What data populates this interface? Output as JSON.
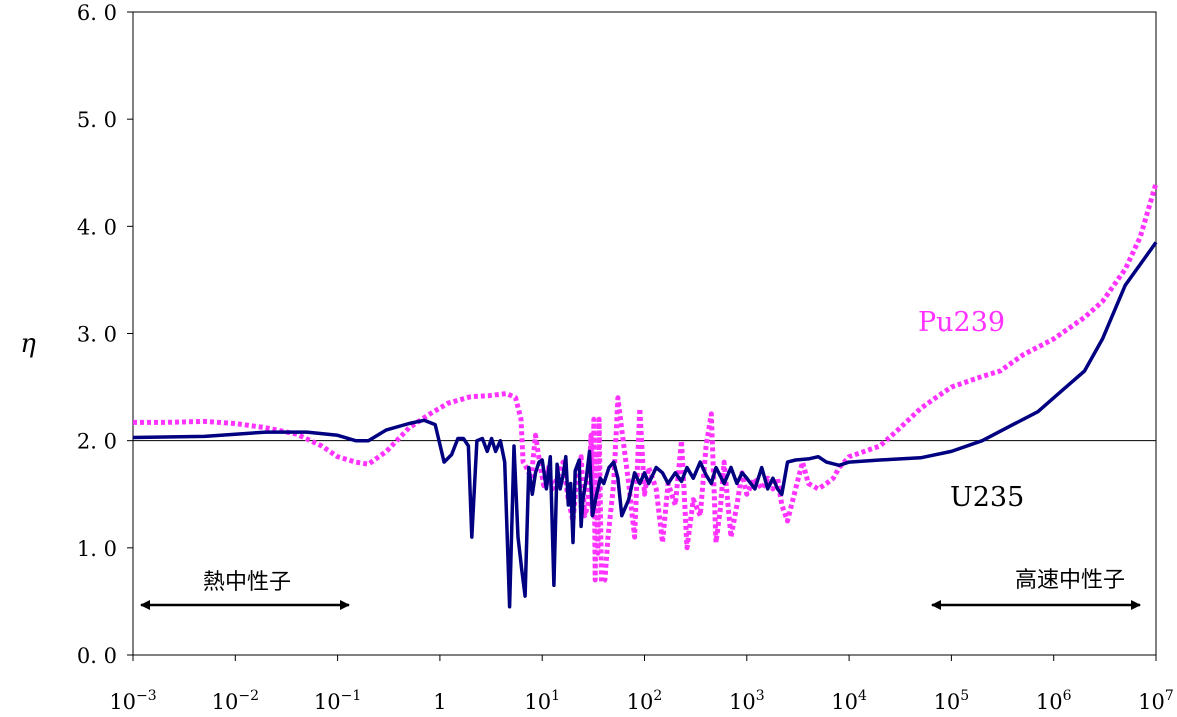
{
  "chart_data": {
    "type": "line",
    "title": "",
    "xlabel": "",
    "ylabel": "η",
    "x_scale": "log",
    "xlim": [
      0.001,
      10000000
    ],
    "ylim": [
      0,
      6
    ],
    "grid": false,
    "reference_line_y": 2.0,
    "x_ticks": [
      {
        "base": "10",
        "exp": "−3"
      },
      {
        "base": "10",
        "exp": "−2"
      },
      {
        "base": "10",
        "exp": "−1"
      },
      {
        "base": "1",
        "exp": ""
      },
      {
        "base": "10",
        "exp": "1"
      },
      {
        "base": "10",
        "exp": "2"
      },
      {
        "base": "10",
        "exp": "3"
      },
      {
        "base": "10",
        "exp": "4"
      },
      {
        "base": "10",
        "exp": "5"
      },
      {
        "base": "10",
        "exp": "6"
      },
      {
        "base": "10",
        "exp": "7"
      }
    ],
    "y_ticks": [
      "0. 0",
      "1. 0",
      "2. 0",
      "3. 0",
      "4. 0",
      "5. 0",
      "6. 0"
    ],
    "series": [
      {
        "name": "U235",
        "color": "#000080",
        "style": "solid",
        "points": [
          [
            0.001,
            2.03
          ],
          [
            0.005,
            2.04
          ],
          [
            0.01,
            2.06
          ],
          [
            0.02,
            2.08
          ],
          [
            0.05,
            2.08
          ],
          [
            0.1,
            2.05
          ],
          [
            0.15,
            2.0
          ],
          [
            0.2,
            2.0
          ],
          [
            0.3,
            2.1
          ],
          [
            0.5,
            2.16
          ],
          [
            0.7,
            2.19
          ],
          [
            0.9,
            2.15
          ],
          [
            1.1,
            1.8
          ],
          [
            1.3,
            1.87
          ],
          [
            1.5,
            2.02
          ],
          [
            1.7,
            2.02
          ],
          [
            1.9,
            1.95
          ],
          [
            2.05,
            1.1
          ],
          [
            2.3,
            2.0
          ],
          [
            2.6,
            2.02
          ],
          [
            2.9,
            1.9
          ],
          [
            3.2,
            2.02
          ],
          [
            3.5,
            1.9
          ],
          [
            3.9,
            2.0
          ],
          [
            4.3,
            1.8
          ],
          [
            4.8,
            0.45
          ],
          [
            5.3,
            1.95
          ],
          [
            5.8,
            1.1
          ],
          [
            6.3,
            0.8
          ],
          [
            6.8,
            0.55
          ],
          [
            7.4,
            1.75
          ],
          [
            8.0,
            1.5
          ],
          [
            8.6,
            1.7
          ],
          [
            9.3,
            1.8
          ],
          [
            10,
            1.82
          ],
          [
            11,
            1.55
          ],
          [
            12,
            1.85
          ],
          [
            13,
            0.65
          ],
          [
            14,
            1.78
          ],
          [
            15,
            1.55
          ],
          [
            16,
            1.68
          ],
          [
            17,
            1.85
          ],
          [
            18,
            1.4
          ],
          [
            19,
            1.6
          ],
          [
            20,
            1.05
          ],
          [
            21,
            1.72
          ],
          [
            23,
            1.82
          ],
          [
            24,
            1.2
          ],
          [
            25,
            1.45
          ],
          [
            27,
            1.65
          ],
          [
            29,
            1.9
          ],
          [
            31,
            1.3
          ],
          [
            34,
            1.5
          ],
          [
            37,
            1.65
          ],
          [
            40,
            1.6
          ],
          [
            45,
            1.75
          ],
          [
            50,
            1.8
          ],
          [
            55,
            1.65
          ],
          [
            60,
            1.3
          ],
          [
            70,
            1.45
          ],
          [
            80,
            1.7
          ],
          [
            90,
            1.6
          ],
          [
            100,
            1.7
          ],
          [
            110,
            1.6
          ],
          [
            130,
            1.75
          ],
          [
            150,
            1.7
          ],
          [
            170,
            1.6
          ],
          [
            200,
            1.7
          ],
          [
            230,
            1.62
          ],
          [
            260,
            1.75
          ],
          [
            300,
            1.65
          ],
          [
            350,
            1.8
          ],
          [
            400,
            1.68
          ],
          [
            450,
            1.6
          ],
          [
            500,
            1.75
          ],
          [
            600,
            1.6
          ],
          [
            700,
            1.75
          ],
          [
            800,
            1.6
          ],
          [
            900,
            1.7
          ],
          [
            1000,
            1.65
          ],
          [
            1200,
            1.55
          ],
          [
            1400,
            1.75
          ],
          [
            1600,
            1.55
          ],
          [
            1800,
            1.65
          ],
          [
            2000,
            1.55
          ],
          [
            2200,
            1.5
          ],
          [
            2500,
            1.8
          ],
          [
            3000,
            1.82
          ],
          [
            4000,
            1.83
          ],
          [
            5000,
            1.85
          ],
          [
            6000,
            1.8
          ],
          [
            8000,
            1.77
          ],
          [
            10000,
            1.8
          ],
          [
            20000,
            1.82
          ],
          [
            50000,
            1.84
          ],
          [
            100000,
            1.9
          ],
          [
            200000,
            2.0
          ],
          [
            400000,
            2.15
          ],
          [
            700000,
            2.27
          ],
          [
            1000000,
            2.4
          ],
          [
            2000000,
            2.65
          ],
          [
            3000000,
            2.95
          ],
          [
            5000000,
            3.45
          ],
          [
            10000000,
            3.85
          ]
        ]
      },
      {
        "name": "Pu239",
        "color": "#ff33ff",
        "style": "dotted",
        "points": [
          [
            0.001,
            2.17
          ],
          [
            0.002,
            2.17
          ],
          [
            0.005,
            2.18
          ],
          [
            0.01,
            2.16
          ],
          [
            0.02,
            2.12
          ],
          [
            0.04,
            2.06
          ],
          [
            0.07,
            1.95
          ],
          [
            0.1,
            1.85
          ],
          [
            0.15,
            1.8
          ],
          [
            0.2,
            1.78
          ],
          [
            0.3,
            1.9
          ],
          [
            0.5,
            2.12
          ],
          [
            0.8,
            2.25
          ],
          [
            1.2,
            2.35
          ],
          [
            2,
            2.41
          ],
          [
            3,
            2.42
          ],
          [
            4.5,
            2.44
          ],
          [
            5.5,
            2.4
          ],
          [
            6.2,
            2.2
          ],
          [
            6.5,
            1.8
          ],
          [
            7.0,
            1.75
          ],
          [
            7.8,
            1.65
          ],
          [
            8.6,
            2.05
          ],
          [
            9.5,
            1.78
          ],
          [
            10.5,
            1.55
          ],
          [
            11.5,
            1.75
          ],
          [
            12.5,
            1.55
          ],
          [
            14,
            1.65
          ],
          [
            16,
            1.8
          ],
          [
            18,
            1.45
          ],
          [
            20,
            1.25
          ],
          [
            22,
            1.7
          ],
          [
            24,
            1.85
          ],
          [
            26,
            1.3
          ],
          [
            28,
            1.4
          ],
          [
            30,
            2.05
          ],
          [
            31,
            1.3
          ],
          [
            32,
            2.2
          ],
          [
            33,
            0.7
          ],
          [
            34,
            1.9
          ],
          [
            35,
            0.95
          ],
          [
            36,
            2.2
          ],
          [
            38,
            0.68
          ],
          [
            41,
            0.7
          ],
          [
            44,
            1.1
          ],
          [
            50,
            1.6
          ],
          [
            55,
            2.4
          ],
          [
            60,
            2.1
          ],
          [
            70,
            1.6
          ],
          [
            80,
            1.1
          ],
          [
            90,
            2.3
          ],
          [
            100,
            1.5
          ],
          [
            110,
            1.75
          ],
          [
            130,
            1.55
          ],
          [
            150,
            1.05
          ],
          [
            170,
            1.6
          ],
          [
            200,
            1.4
          ],
          [
            230,
            2.0
          ],
          [
            260,
            1.0
          ],
          [
            300,
            1.45
          ],
          [
            350,
            1.3
          ],
          [
            400,
            1.95
          ],
          [
            450,
            2.25
          ],
          [
            500,
            1.05
          ],
          [
            550,
            1.35
          ],
          [
            600,
            1.8
          ],
          [
            700,
            1.1
          ],
          [
            800,
            1.4
          ],
          [
            900,
            1.7
          ],
          [
            1000,
            1.5
          ],
          [
            1200,
            1.65
          ],
          [
            1400,
            1.55
          ],
          [
            1600,
            1.65
          ],
          [
            1800,
            1.55
          ],
          [
            2000,
            1.65
          ],
          [
            2200,
            1.4
          ],
          [
            2500,
            1.25
          ],
          [
            3000,
            1.55
          ],
          [
            3500,
            1.8
          ],
          [
            4000,
            1.6
          ],
          [
            5000,
            1.55
          ],
          [
            6000,
            1.6
          ],
          [
            7000,
            1.65
          ],
          [
            8000,
            1.75
          ],
          [
            10000,
            1.85
          ],
          [
            20000,
            1.95
          ],
          [
            30000,
            2.1
          ],
          [
            50000,
            2.3
          ],
          [
            70000,
            2.4
          ],
          [
            100000,
            2.5
          ],
          [
            200000,
            2.6
          ],
          [
            300000,
            2.65
          ],
          [
            500000,
            2.8
          ],
          [
            1000000,
            2.95
          ],
          [
            2000000,
            3.15
          ],
          [
            3000000,
            3.3
          ],
          [
            5000000,
            3.6
          ],
          [
            7000000,
            3.9
          ],
          [
            10000000,
            4.4
          ]
        ]
      }
    ],
    "series_labels": {
      "pu": "Pu239",
      "u": "U235"
    },
    "annotations": {
      "thermal": "熱中性子",
      "fast": "高速中性子"
    }
  }
}
